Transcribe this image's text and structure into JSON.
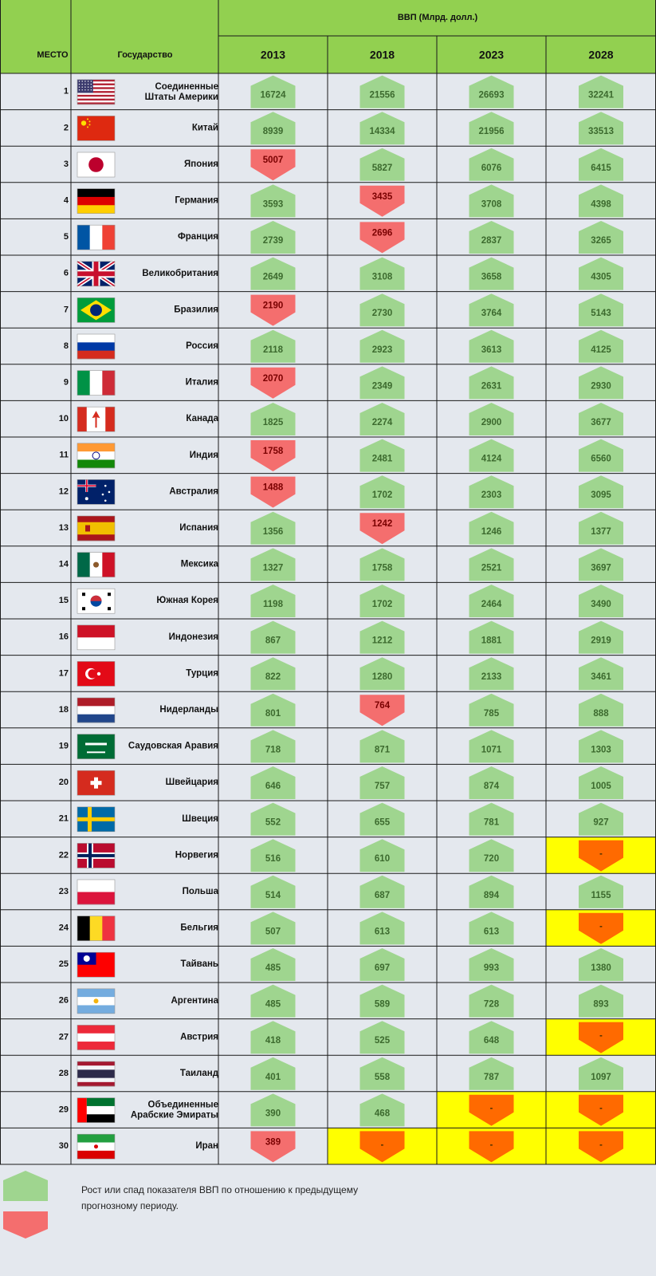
{
  "colors": {
    "header_green": "#92d050",
    "row_bg": "#e4e8ee",
    "grid": "#1a1a1a",
    "up_green": "#9fd58f",
    "down_red": "#f46e6e",
    "na_yellow": "#ffff00",
    "na_orange": "#ff6a00"
  },
  "header": {
    "group_title": "ВВП (Млрд. долл.)",
    "col_rank": "МЕСТО",
    "col_country": "Государство"
  },
  "legend": {
    "text_line1": "Рост или спад показателя ВВП по отношению к предыдущему",
    "text_line2": "прогнозному периоду."
  },
  "chart_data": {
    "type": "table",
    "title": "ВВП (Млрд. долл.)",
    "unit": "Млрд. долл.",
    "years": [
      "2013",
      "2018",
      "2023",
      "2028"
    ],
    "rows": [
      {
        "rank": "1",
        "country": [
          "Соединенные",
          "Штаты Америки"
        ],
        "flag": "usa-flag",
        "values": [
          16724,
          21556,
          26693,
          32241
        ],
        "trend": [
          "up",
          "up",
          "up",
          "up"
        ]
      },
      {
        "rank": "2",
        "country": [
          "Китай"
        ],
        "flag": "china-flag",
        "values": [
          8939,
          14334,
          21956,
          33513
        ],
        "trend": [
          "up",
          "up",
          "up",
          "up"
        ]
      },
      {
        "rank": "3",
        "country": [
          "Япония"
        ],
        "flag": "japan-flag",
        "values": [
          5007,
          5827,
          6076,
          6415
        ],
        "trend": [
          "down",
          "up",
          "up",
          "up"
        ]
      },
      {
        "rank": "4",
        "country": [
          "Германия"
        ],
        "flag": "germany-flag",
        "values": [
          3593,
          3435,
          3708,
          4398
        ],
        "trend": [
          "up",
          "down",
          "up",
          "up"
        ]
      },
      {
        "rank": "5",
        "country": [
          "Франция"
        ],
        "flag": "france-flag",
        "values": [
          2739,
          2696,
          2837,
          3265
        ],
        "trend": [
          "up",
          "down",
          "up",
          "up"
        ]
      },
      {
        "rank": "6",
        "country": [
          "Великобритания"
        ],
        "flag": "uk-flag",
        "values": [
          2649,
          3108,
          3658,
          4305
        ],
        "trend": [
          "up",
          "up",
          "up",
          "up"
        ]
      },
      {
        "rank": "7",
        "country": [
          "Бразилия"
        ],
        "flag": "brazil-flag",
        "values": [
          2190,
          2730,
          3764,
          5143
        ],
        "trend": [
          "down",
          "up",
          "up",
          "up"
        ]
      },
      {
        "rank": "8",
        "country": [
          "Россия"
        ],
        "flag": "russia-flag",
        "values": [
          2118,
          2923,
          3613,
          4125
        ],
        "trend": [
          "up",
          "up",
          "up",
          "up"
        ]
      },
      {
        "rank": "9",
        "country": [
          "Италия"
        ],
        "flag": "italy-flag",
        "values": [
          2070,
          2349,
          2631,
          2930
        ],
        "trend": [
          "down",
          "up",
          "up",
          "up"
        ]
      },
      {
        "rank": "10",
        "country": [
          "Канада"
        ],
        "flag": "canada-flag",
        "values": [
          1825,
          2274,
          2900,
          3677
        ],
        "trend": [
          "up",
          "up",
          "up",
          "up"
        ]
      },
      {
        "rank": "11",
        "country": [
          "Индия"
        ],
        "flag": "india-flag",
        "values": [
          1758,
          2481,
          4124,
          6560
        ],
        "trend": [
          "down",
          "up",
          "up",
          "up"
        ]
      },
      {
        "rank": "12",
        "country": [
          "Австралия"
        ],
        "flag": "australia-flag",
        "values": [
          1488,
          1702,
          2303,
          3095
        ],
        "trend": [
          "down",
          "up",
          "up",
          "up"
        ]
      },
      {
        "rank": "13",
        "country": [
          "Испания"
        ],
        "flag": "spain-flag",
        "values": [
          1356,
          1242,
          1246,
          1377
        ],
        "trend": [
          "up",
          "down",
          "up",
          "up"
        ]
      },
      {
        "rank": "14",
        "country": [
          "Мексика"
        ],
        "flag": "mexico-flag",
        "values": [
          1327,
          1758,
          2521,
          3697
        ],
        "trend": [
          "up",
          "up",
          "up",
          "up"
        ]
      },
      {
        "rank": "15",
        "country": [
          "Южная Корея"
        ],
        "flag": "korea-flag",
        "values": [
          1198,
          1702,
          2464,
          3490
        ],
        "trend": [
          "up",
          "up",
          "up",
          "up"
        ]
      },
      {
        "rank": "16",
        "country": [
          "Индонезия"
        ],
        "flag": "indonesia-flag",
        "values": [
          867,
          1212,
          1881,
          2919
        ],
        "trend": [
          "up",
          "up",
          "up",
          "up"
        ]
      },
      {
        "rank": "17",
        "country": [
          "Турция"
        ],
        "flag": "turkey-flag",
        "values": [
          822,
          1280,
          2133,
          3461
        ],
        "trend": [
          "up",
          "up",
          "up",
          "up"
        ]
      },
      {
        "rank": "18",
        "country": [
          "Нидерланды"
        ],
        "flag": "netherlands-flag",
        "values": [
          801,
          764,
          785,
          888
        ],
        "trend": [
          "up",
          "down",
          "up",
          "up"
        ]
      },
      {
        "rank": "19",
        "country": [
          "Саудовская Аравия"
        ],
        "flag": "saudi-flag",
        "values": [
          718,
          871,
          1071,
          1303
        ],
        "trend": [
          "up",
          "up",
          "up",
          "up"
        ]
      },
      {
        "rank": "20",
        "country": [
          "Швейцария"
        ],
        "flag": "switzerland-flag",
        "values": [
          646,
          757,
          874,
          1005
        ],
        "trend": [
          "up",
          "up",
          "up",
          "up"
        ]
      },
      {
        "rank": "21",
        "country": [
          "Швеция"
        ],
        "flag": "sweden-flag",
        "values": [
          552,
          655,
          781,
          927
        ],
        "trend": [
          "up",
          "up",
          "up",
          "up"
        ]
      },
      {
        "rank": "22",
        "country": [
          "Норвегия"
        ],
        "flag": "norway-flag",
        "values": [
          516,
          610,
          720,
          "-"
        ],
        "trend": [
          "up",
          "up",
          "up",
          "na"
        ]
      },
      {
        "rank": "23",
        "country": [
          "Польша"
        ],
        "flag": "poland-flag",
        "values": [
          514,
          687,
          894,
          1155
        ],
        "trend": [
          "up",
          "up",
          "up",
          "up"
        ]
      },
      {
        "rank": "24",
        "country": [
          "Бельгия"
        ],
        "flag": "belgium-flag",
        "values": [
          507,
          613,
          613,
          "-"
        ],
        "trend": [
          "up",
          "up",
          "up",
          "na"
        ]
      },
      {
        "rank": "25",
        "country": [
          "Тайвань"
        ],
        "flag": "taiwan-flag",
        "values": [
          485,
          697,
          993,
          1380
        ],
        "trend": [
          "up",
          "up",
          "up",
          "up"
        ]
      },
      {
        "rank": "26",
        "country": [
          "Аргентина"
        ],
        "flag": "argentina-flag",
        "values": [
          485,
          589,
          728,
          893
        ],
        "trend": [
          "up",
          "up",
          "up",
          "up"
        ]
      },
      {
        "rank": "27",
        "country": [
          "Австрия"
        ],
        "flag": "austria-flag",
        "values": [
          418,
          525,
          648,
          "-"
        ],
        "trend": [
          "up",
          "up",
          "up",
          "na"
        ]
      },
      {
        "rank": "28",
        "country": [
          "Таиланд"
        ],
        "flag": "thailand-flag",
        "values": [
          401,
          558,
          787,
          1097
        ],
        "trend": [
          "up",
          "up",
          "up",
          "up"
        ]
      },
      {
        "rank": "29",
        "country": [
          "Объединенные",
          "Арабские Эмираты"
        ],
        "flag": "uae-flag",
        "values": [
          390,
          468,
          "-",
          "-"
        ],
        "trend": [
          "up",
          "up",
          "na",
          "na"
        ]
      },
      {
        "rank": "30",
        "country": [
          "Иран"
        ],
        "flag": "iran-flag",
        "values": [
          389,
          "-",
          "-",
          "-"
        ],
        "trend": [
          "down",
          "na",
          "na",
          "na"
        ]
      }
    ]
  }
}
